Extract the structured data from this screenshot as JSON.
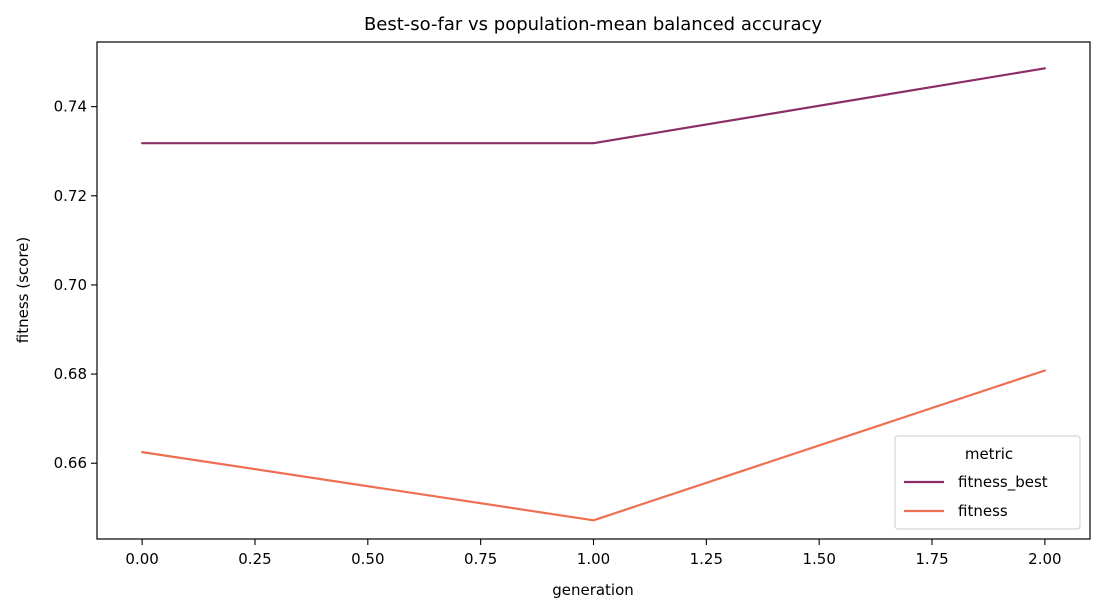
{
  "chart_data": {
    "type": "line",
    "title": "Best-so-far vs population-mean balanced accuracy",
    "xlabel": "generation",
    "ylabel": "fitness (score)",
    "xlim": [
      -0.1,
      2.1
    ],
    "ylim": [
      0.643,
      0.7545
    ],
    "x_ticks": [
      0.0,
      0.25,
      0.5,
      0.75,
      1.0,
      1.25,
      1.5,
      1.75,
      2.0
    ],
    "x_tick_labels": [
      "0.00",
      "0.25",
      "0.50",
      "0.75",
      "1.00",
      "1.25",
      "1.50",
      "1.75",
      "2.00"
    ],
    "y_ticks": [
      0.66,
      0.68,
      0.7,
      0.72,
      0.74
    ],
    "y_tick_labels": [
      "0.66",
      "0.68",
      "0.70",
      "0.72",
      "0.74"
    ],
    "grid": false,
    "legend": {
      "title": "metric",
      "placement": "lower-right"
    },
    "x": [
      0,
      1,
      2
    ],
    "series": [
      {
        "name": "fitness_best",
        "values": [
          0.7318,
          0.7318,
          0.7486
        ],
        "color": "#8b2f66"
      },
      {
        "name": "fitness",
        "values": [
          0.6625,
          0.6472,
          0.6808
        ],
        "color": "#ef6f52"
      }
    ]
  }
}
